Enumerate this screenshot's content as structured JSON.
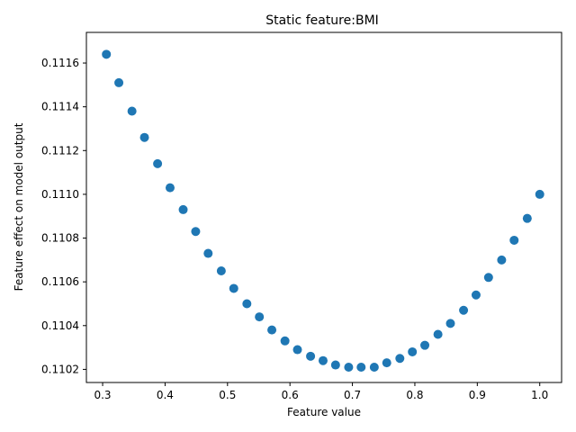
{
  "chart_data": {
    "type": "scatter",
    "title": "Static feature:BMI",
    "xlabel": "Feature value",
    "ylabel": "Feature effect on model output",
    "xlim": [
      0.274,
      1.035
    ],
    "ylim": [
      0.11014,
      0.11174
    ],
    "xticks": [
      0.3,
      0.4,
      0.5,
      0.6,
      0.7,
      0.8,
      0.9,
      1.0
    ],
    "xtick_labels": [
      "0.3",
      "0.4",
      "0.5",
      "0.6",
      "0.7",
      "0.8",
      "0.9",
      "1.0"
    ],
    "yticks": [
      0.1102,
      0.1104,
      0.1106,
      0.1108,
      0.111,
      0.1112,
      0.1114,
      0.1116
    ],
    "ytick_labels": [
      "0.1102",
      "0.1104",
      "0.1106",
      "0.1108",
      "0.1110",
      "0.1112",
      "0.1114",
      "0.1116"
    ],
    "grid": false,
    "marker_color": "#1f77b4",
    "points": [
      {
        "x": 0.306,
        "y": 0.11164
      },
      {
        "x": 0.326,
        "y": 0.11151
      },
      {
        "x": 0.347,
        "y": 0.11138
      },
      {
        "x": 0.367,
        "y": 0.11126
      },
      {
        "x": 0.388,
        "y": 0.11114
      },
      {
        "x": 0.408,
        "y": 0.11103
      },
      {
        "x": 0.429,
        "y": 0.11093
      },
      {
        "x": 0.449,
        "y": 0.11083
      },
      {
        "x": 0.469,
        "y": 0.11073
      },
      {
        "x": 0.49,
        "y": 0.11065
      },
      {
        "x": 0.51,
        "y": 0.11057
      },
      {
        "x": 0.531,
        "y": 0.1105
      },
      {
        "x": 0.551,
        "y": 0.11044
      },
      {
        "x": 0.571,
        "y": 0.11038
      },
      {
        "x": 0.592,
        "y": 0.11033
      },
      {
        "x": 0.612,
        "y": 0.11029
      },
      {
        "x": 0.633,
        "y": 0.11026
      },
      {
        "x": 0.653,
        "y": 0.11024
      },
      {
        "x": 0.673,
        "y": 0.11022
      },
      {
        "x": 0.694,
        "y": 0.11021
      },
      {
        "x": 0.714,
        "y": 0.11021
      },
      {
        "x": 0.735,
        "y": 0.11021
      },
      {
        "x": 0.755,
        "y": 0.11023
      },
      {
        "x": 0.776,
        "y": 0.11025
      },
      {
        "x": 0.796,
        "y": 0.11028
      },
      {
        "x": 0.816,
        "y": 0.11031
      },
      {
        "x": 0.837,
        "y": 0.11036
      },
      {
        "x": 0.857,
        "y": 0.11041
      },
      {
        "x": 0.878,
        "y": 0.11047
      },
      {
        "x": 0.898,
        "y": 0.11054
      },
      {
        "x": 0.918,
        "y": 0.11062
      },
      {
        "x": 0.939,
        "y": 0.1107
      },
      {
        "x": 0.959,
        "y": 0.11079
      },
      {
        "x": 0.98,
        "y": 0.11089
      },
      {
        "x": 1.0,
        "y": 0.111
      }
    ]
  }
}
